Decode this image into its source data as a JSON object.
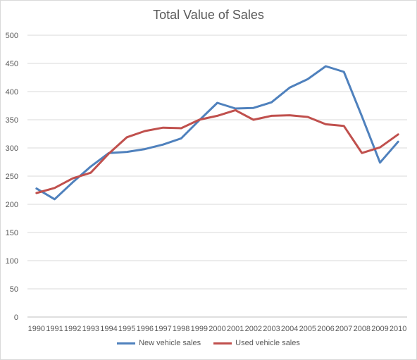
{
  "chart_data": {
    "type": "line",
    "title": "Total Value of Sales",
    "xlabel": "",
    "ylabel": "",
    "categories": [
      "1990",
      "1991",
      "1992",
      "1993",
      "1994",
      "1995",
      "1996",
      "1997",
      "1998",
      "1999",
      "2000",
      "2001",
      "2002",
      "2003",
      "2004",
      "2005",
      "2006",
      "2007",
      "2008",
      "2009",
      "2010"
    ],
    "ylim": [
      0,
      500
    ],
    "yticks": [
      "0",
      "50",
      "100",
      "150",
      "200",
      "250",
      "300",
      "350",
      "400",
      "450",
      "500"
    ],
    "grid": "horizontal",
    "legend_position": "bottom",
    "series": [
      {
        "name": "New vehicle sales",
        "color": "#4f81bd",
        "values": [
          228,
          209,
          239,
          267,
          291,
          293,
          298,
          306,
          317,
          349,
          380,
          370,
          371,
          381,
          407,
          422,
          445,
          435,
          356,
          274,
          311
        ]
      },
      {
        "name": "Used vehicle sales",
        "color": "#c0504d",
        "values": [
          220,
          229,
          246,
          256,
          290,
          319,
          330,
          336,
          335,
          350,
          357,
          367,
          350,
          357,
          358,
          355,
          342,
          339,
          291,
          301,
          324
        ]
      }
    ]
  }
}
